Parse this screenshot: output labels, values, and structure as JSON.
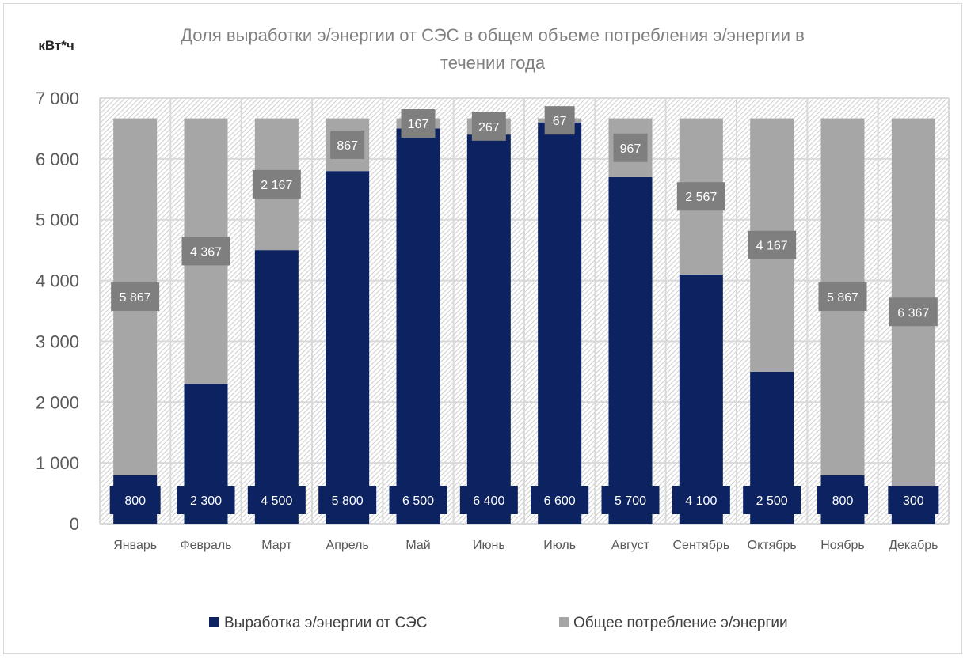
{
  "chart_data": {
    "type": "bar",
    "stacked": true,
    "title_lines": [
      "Доля выработки э/энергии от СЭС в общем объеме потребления э/энергии в",
      "течении года"
    ],
    "unit_label": "кВт*ч",
    "categories": [
      "Январь",
      "Февраль",
      "Март",
      "Апрель",
      "Май",
      "Июнь",
      "Июль",
      "Август",
      "Сентябрь",
      "Октябрь",
      "Ноябрь",
      "Декабрь"
    ],
    "series": [
      {
        "name": "Выработка э/энергии от СЭС",
        "color": "#0d2260",
        "values": [
          800,
          2300,
          4500,
          5800,
          6500,
          6400,
          6600,
          5700,
          4100,
          2500,
          800,
          300
        ],
        "value_labels": [
          "800",
          "2 300",
          "4 500",
          "5 800",
          "6 500",
          "6 400",
          "6 600",
          "5 700",
          "4 100",
          "2 500",
          "800",
          "300"
        ]
      },
      {
        "name": "Общее потребление э/энергии",
        "color": "#a6a6a6",
        "values": [
          5867,
          4367,
          2167,
          867,
          167,
          267,
          67,
          967,
          2567,
          4167,
          5867,
          6367
        ],
        "value_labels": [
          "5 867",
          "4 367",
          "2 167",
          "867",
          "167",
          "267",
          "67",
          "967",
          "2 567",
          "4 167",
          "5 867",
          "6 367"
        ]
      }
    ],
    "ylim": [
      0,
      7000
    ],
    "yticks": [
      0,
      1000,
      2000,
      3000,
      4000,
      5000,
      6000,
      7000
    ],
    "ytick_labels": [
      "0",
      "1 000",
      "2 000",
      "3 000",
      "4 000",
      "5 000",
      "6 000",
      "7 000"
    ],
    "grid": true,
    "legend_position": "bottom"
  }
}
